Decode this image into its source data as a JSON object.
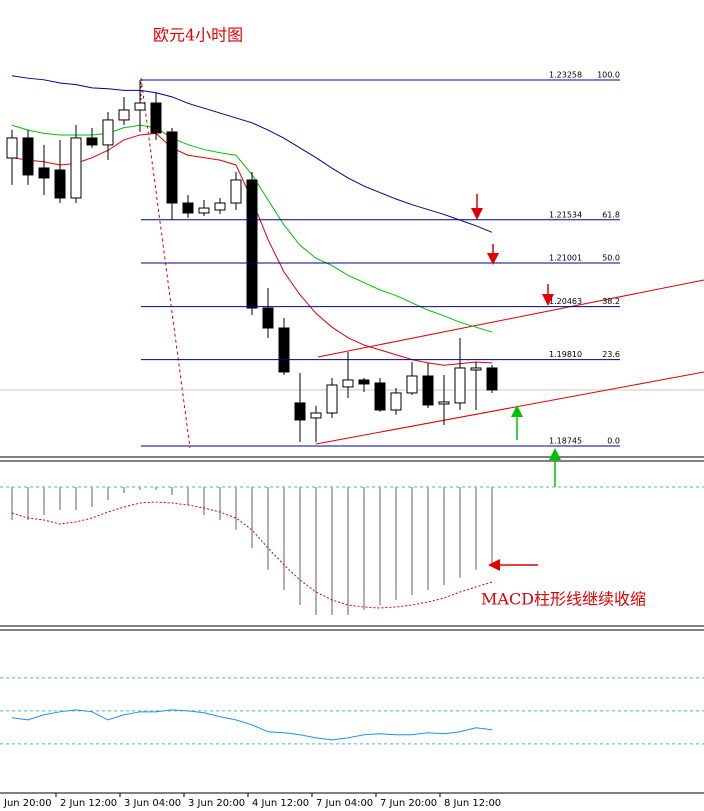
{
  "chart_data": {
    "type": "candlestick",
    "title": "欧元4小时图",
    "annotation": "MACD柱形线继续收缩",
    "ylim": [
      1.18634,
      1.24244
    ],
    "open": [
      1.22296,
      1.22543,
      1.22173,
      1.22148,
      1.21803,
      1.22543,
      1.22457,
      1.22765,
      1.22888,
      1.22974,
      1.22617,
      1.21741,
      1.21618,
      1.21655,
      1.21741,
      1.22025,
      1.20446,
      1.202,
      1.19276,
      1.19091,
      1.19152,
      1.19473,
      1.19559,
      1.19522,
      1.19189,
      1.19399,
      1.19608,
      1.19263,
      1.19276,
      1.19682,
      1.19707
    ],
    "high": [
      1.22642,
      1.22642,
      1.22457,
      1.22518,
      1.22703,
      1.22666,
      1.22863,
      1.23048,
      1.23258,
      1.23098,
      1.22666,
      1.2184,
      1.21778,
      1.21803,
      1.22124,
      1.22124,
      1.20693,
      1.20323,
      1.19645,
      1.19239,
      1.19584,
      1.19904,
      1.19584,
      1.19584,
      1.1946,
      1.19781,
      1.19769,
      1.19621,
      1.20077,
      1.19781,
      1.19744
    ],
    "low": [
      1.21964,
      1.21964,
      1.2184,
      1.21741,
      1.21741,
      1.2242,
      1.22272,
      1.22703,
      1.22617,
      1.22518,
      1.21532,
      1.21557,
      1.21581,
      1.21606,
      1.21655,
      1.2036,
      1.20077,
      1.19621,
      1.18795,
      1.18795,
      1.19091,
      1.19337,
      1.19411,
      1.19165,
      1.19128,
      1.19374,
      1.19214,
      1.19004,
      1.19189,
      1.19189,
      1.19399
    ],
    "close": [
      1.22543,
      1.22087,
      1.2205,
      1.21803,
      1.22543,
      1.22457,
      1.22765,
      1.22888,
      1.22974,
      1.22605,
      1.21741,
      1.21618,
      1.21679,
      1.21741,
      1.22025,
      1.20446,
      1.202,
      1.19658,
      1.19066,
      1.19152,
      1.19497,
      1.19559,
      1.1951,
      1.19189,
      1.19399,
      1.19608,
      1.19251,
      1.19288,
      1.19707,
      1.19707,
      1.19436
    ],
    "series": [
      {
        "color": "#00008b",
        "values": [
          1.2331,
          1.2328,
          1.2326,
          1.2322,
          1.232,
          1.2316,
          1.2315,
          1.2313,
          1.2313,
          1.231,
          1.2305,
          1.2297,
          1.2291,
          1.2285,
          1.2279,
          1.2273,
          1.2264,
          1.2254,
          1.2242,
          1.223,
          1.2217,
          1.2205,
          1.2195,
          1.2187,
          1.2179,
          1.2172,
          1.2166,
          1.216,
          1.2153,
          1.2146,
          1.2138
        ]
      },
      {
        "color": "#00c000",
        "values": [
          1.227,
          1.2264,
          1.226,
          1.2258,
          1.2258,
          1.2258,
          1.226,
          1.2267,
          1.227,
          1.2267,
          1.2254,
          1.2246,
          1.224,
          1.2236,
          1.2233,
          1.2209,
          1.2178,
          1.2147,
          1.2122,
          1.2106,
          1.2097,
          1.2085,
          1.2076,
          1.2067,
          1.206,
          1.2051,
          1.2042,
          1.2035,
          1.2027,
          1.2021,
          1.2015
        ]
      },
      {
        "color": "#e00000",
        "values": [
          1.223,
          1.2227,
          1.2225,
          1.2221,
          1.2223,
          1.223,
          1.2239,
          1.2252,
          1.2258,
          1.226,
          1.2242,
          1.2233,
          1.223,
          1.2227,
          1.2221,
          1.2178,
          1.2129,
          1.2089,
          1.2061,
          1.2038,
          1.2021,
          1.2008,
          1.1999,
          1.1993,
          1.1987,
          1.1981,
          1.1977,
          1.1974,
          1.1976,
          1.1978,
          1.1977
        ]
      }
    ],
    "fib_levels": {
      "prices": [
        1.23258,
        1.21534,
        1.21001,
        1.20463,
        1.1981,
        1.18745
      ],
      "price_labels": [
        "1.23258",
        "1.21534",
        "1.21001",
        "1.20463",
        "1.19810",
        "1.18745"
      ],
      "ratios": [
        100,
        61.8,
        50,
        38.2,
        23.6,
        0
      ],
      "ratio_labels": [
        "100.0",
        "61.8",
        "50.0",
        "38.2",
        "23.6",
        "0.0"
      ]
    },
    "macd": {
      "ylim": [
        -0.0138,
        0.0025
      ],
      "histogram": [
        -0.0033,
        -0.0033,
        -0.0028,
        -0.0023,
        -0.0023,
        -0.002,
        -0.0013,
        -0.0006,
        -0.0003,
        -0.0003,
        -0.0008,
        -0.0018,
        -0.0028,
        -0.0033,
        -0.0043,
        -0.0061,
        -0.0083,
        -0.0103,
        -0.0118,
        -0.0128,
        -0.0128,
        -0.0128,
        -0.0123,
        -0.0118,
        -0.0113,
        -0.0108,
        -0.0103,
        -0.0098,
        -0.0091,
        -0.0083,
        -0.0078
      ],
      "hist_color": "#b0b0b0",
      "signal": [
        -0.0026,
        -0.0031,
        -0.0033,
        -0.0037,
        -0.0035,
        -0.0031,
        -0.0025,
        -0.002,
        -0.0016,
        -0.0015,
        -0.0016,
        -0.0018,
        -0.0021,
        -0.0025,
        -0.0031,
        -0.0043,
        -0.0061,
        -0.0078,
        -0.0093,
        -0.0105,
        -0.0113,
        -0.0118,
        -0.012,
        -0.0121,
        -0.012,
        -0.0118,
        -0.0115,
        -0.0111,
        -0.0105,
        -0.01,
        -0.0095
      ],
      "signal_color": "#e00000"
    },
    "oscillator": {
      "ylim": [
        2,
        99
      ],
      "levels": [
        70,
        50,
        30
      ],
      "values": [
        45.8,
        44.5,
        47.6,
        49.4,
        50.6,
        49.4,
        44.5,
        47.6,
        49.4,
        49.4,
        50.6,
        50.0,
        48.8,
        46.4,
        44.5,
        41.5,
        37.3,
        36.7,
        35.5,
        33.6,
        32.4,
        33.6,
        35.5,
        36.1,
        35.5,
        35.5,
        36.7,
        36.1,
        37.3,
        39.7,
        38.5
      ],
      "color": "#1e90ff"
    },
    "x_labels": [
      "Jun 20:00",
      "2 Jun 12:00",
      "3 Jun 04:00",
      "3 Jun 20:00",
      "4 Jun 12:00",
      "7 Jun 04:00",
      "7 Jun 20:00",
      "8 Jun 12:00"
    ]
  }
}
